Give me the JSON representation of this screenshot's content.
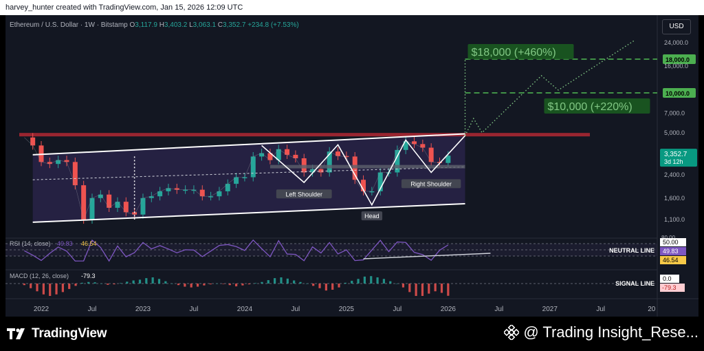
{
  "header": {
    "attribution": "harvey_hunter created with TradingView.com, Jan 15, 2026 12:09 UTC"
  },
  "legend": {
    "symbol": "Ethereum / U.S. Dollar · 1W · Bitstamp",
    "open_label": "O",
    "open": "3,117.9",
    "high_label": "H",
    "high": "3,403.2",
    "low_label": "L",
    "low": "3,063.1",
    "close_label": "C",
    "close": "3,352.7",
    "change": "+234.8 (+7.53%)"
  },
  "currency_button": "USD",
  "colors": {
    "up": "#26a69a",
    "down": "#ef5350",
    "rsi": "#7e57c2",
    "target_green": "#4caf50",
    "resistance": "#b22833",
    "channel": "#ffffff"
  },
  "chart_data": {
    "type": "line",
    "title": "",
    "xlabel": "",
    "ylabel": "",
    "y_scale": "log",
    "ylim": [
      800,
      30000
    ],
    "x_ticks": [
      "2022",
      "Jul",
      "2023",
      "Jul",
      "2024",
      "Jul",
      "2025",
      "Jul",
      "2026",
      "Jul",
      "2027",
      "Jul",
      "20"
    ],
    "y_ticks": [
      "24,000.0",
      "16,000.0",
      "7,000.0",
      "5,000.0",
      "2,400.0",
      "1,600.0",
      "1,100.0"
    ],
    "price_label": {
      "value": "3,352.7",
      "countdown": "3d 12h"
    },
    "series": [
      {
        "values_by_date": [
          [
            "2021-11",
            4600
          ],
          [
            "2021-12",
            4000
          ],
          [
            "2022-01",
            3000
          ],
          [
            "2022-02",
            2900
          ],
          [
            "2022-03",
            3100
          ],
          [
            "2022-04",
            3000
          ],
          [
            "2022-05",
            2000
          ],
          [
            "2022-06",
            1100
          ],
          [
            "2022-07",
            1600
          ],
          [
            "2022-08",
            1700
          ],
          [
            "2022-09",
            1350
          ],
          [
            "2022-10",
            1500
          ],
          [
            "2022-11",
            1250
          ],
          [
            "2022-12",
            1200
          ],
          [
            "2023-01",
            1600
          ],
          [
            "2023-02",
            1650
          ],
          [
            "2023-03",
            1800
          ],
          [
            "2023-04",
            1900
          ],
          [
            "2023-05",
            1850
          ],
          [
            "2023-06",
            1850
          ],
          [
            "2023-07",
            1850
          ],
          [
            "2023-08",
            1650
          ],
          [
            "2023-09",
            1650
          ],
          [
            "2023-10",
            1800
          ],
          [
            "2023-11",
            2050
          ],
          [
            "2023-12",
            2300
          ],
          [
            "2024-01",
            2300
          ],
          [
            "2024-02",
            3300
          ],
          [
            "2024-03",
            3500
          ],
          [
            "2024-04",
            3100
          ],
          [
            "2024-05",
            3750
          ],
          [
            "2024-06",
            3400
          ],
          [
            "2024-07",
            3200
          ],
          [
            "2024-08",
            2500
          ],
          [
            "2024-09",
            2650
          ],
          [
            "2024-10",
            2500
          ],
          [
            "2024-11",
            3600
          ],
          [
            "2024-12",
            3330
          ],
          [
            "2025-01",
            3300
          ],
          [
            "2025-02",
            2200
          ],
          [
            "2025-03",
            1800
          ],
          [
            "2025-04",
            1800
          ],
          [
            "2025-05",
            2500
          ],
          [
            "2025-06",
            2500
          ],
          [
            "2025-07",
            3700
          ],
          [
            "2025-08",
            4300
          ],
          [
            "2025-09",
            4100
          ],
          [
            "2025-10",
            3850
          ],
          [
            "2025-11",
            3000
          ],
          [
            "2025-12",
            2950
          ],
          [
            "2026-01",
            3352.7
          ]
        ]
      }
    ],
    "channel": {
      "upper": [
        [
          "2021-12",
          3400
        ],
        [
          "2026-03",
          4900
        ]
      ],
      "lower": [
        [
          "2021-12",
          1050
        ],
        [
          "2026-03",
          1450
        ]
      ],
      "mid": [
        [
          "2021-12",
          2200
        ],
        [
          "2026-03",
          2750
        ]
      ]
    },
    "resistance": 4800,
    "pattern": {
      "labels": [
        "Left Shoulder",
        "Head",
        "Right Shoulder"
      ]
    },
    "targets": [
      {
        "price": 18000,
        "label": "$18,000 (+460%)",
        "axis_label": "18,000.0"
      },
      {
        "price": 10000,
        "label": "$10,000 (+220%)",
        "axis_label": "10,000.0"
      }
    ]
  },
  "rsi": {
    "label": "RSI (14, close)",
    "value": "49.83",
    "ma_value": "46.54",
    "axis_value": "50.00",
    "neutral_label": "NEUTRAL LINE",
    "top_tick": "80.00"
  },
  "macd": {
    "label": "MACD (12, 26, close)",
    "value": "-79.3",
    "axis_value": "0.0",
    "signal_label": "SIGNAL LINE",
    "hist": [
      -10,
      -30,
      -50,
      -70,
      -80,
      -70,
      -55,
      -35,
      -15,
      5,
      10,
      8,
      0,
      -8,
      -5,
      3,
      12,
      20,
      25,
      35,
      40,
      30,
      15,
      0,
      -10,
      -20,
      -25,
      -20,
      -12,
      -5,
      0,
      -3,
      -10,
      -18,
      -12,
      -5,
      3,
      10,
      22,
      35,
      40,
      32,
      20,
      10,
      0,
      -15,
      -30,
      -45,
      -40,
      -25,
      5,
      18,
      30,
      45,
      48,
      40,
      30,
      15,
      0,
      -25,
      -55,
      -80,
      -80,
      -65,
      -50,
      -60,
      -79
    ]
  },
  "footer": {
    "brand": "TradingView",
    "author": "@ Trading Insight_Rese..."
  }
}
